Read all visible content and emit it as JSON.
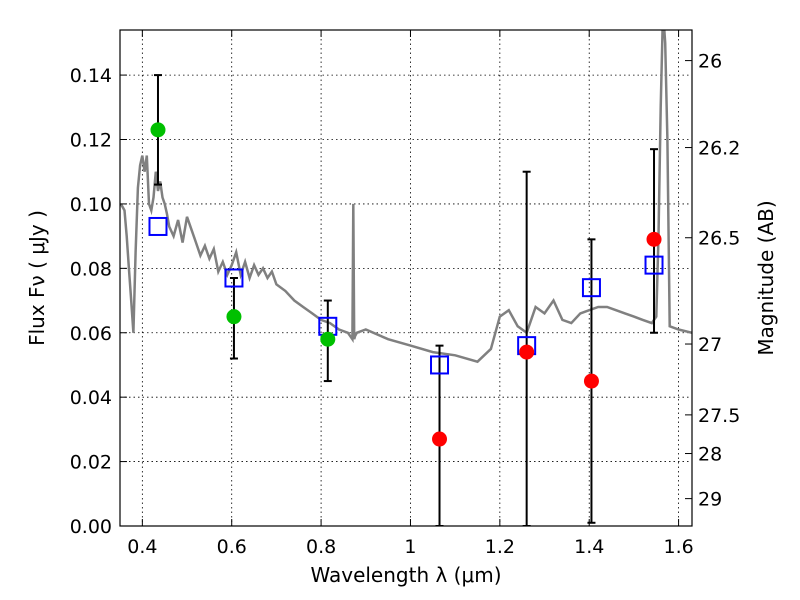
{
  "chart_data": {
    "type": "scatter",
    "xlabel": "Wavelength  λ (μm)",
    "ylabel": "Flux  Fν  ( μJy )",
    "y2label": "Magnitude (AB)",
    "xlim": [
      0.35,
      1.63
    ],
    "ylim": [
      0.0,
      0.154
    ],
    "grid": true,
    "x_ticks": [
      0.4,
      0.6,
      0.8,
      1.0,
      1.2,
      1.4,
      1.6
    ],
    "x_tick_labels": [
      "0.4",
      "0.6",
      "0.8",
      "1",
      "1.2",
      "1.4",
      "1.6"
    ],
    "y_ticks": [
      0.0,
      0.02,
      0.04,
      0.06,
      0.08,
      0.1,
      0.12,
      0.14
    ],
    "y_tick_labels": [
      "0.00",
      "0.02",
      "0.04",
      "0.06",
      "0.08",
      "0.10",
      "0.12",
      "0.14"
    ],
    "y2_ticks": [
      {
        "label": "26",
        "flux": 0.1445
      },
      {
        "label": "26.2",
        "flux": 0.1175
      },
      {
        "label": "26.5",
        "flux": 0.0895
      },
      {
        "label": "27",
        "flux": 0.0565
      },
      {
        "label": "27.5",
        "flux": 0.0345
      },
      {
        "label": "28",
        "flux": 0.0225
      },
      {
        "label": "29",
        "flux": 0.0085
      }
    ],
    "sed_model": {
      "color": "#808080",
      "x": [
        0.352,
        0.36,
        0.365,
        0.37,
        0.375,
        0.38,
        0.385,
        0.39,
        0.395,
        0.4,
        0.405,
        0.41,
        0.415,
        0.42,
        0.425,
        0.43,
        0.435,
        0.44,
        0.445,
        0.45,
        0.455,
        0.46,
        0.47,
        0.48,
        0.49,
        0.5,
        0.51,
        0.52,
        0.53,
        0.54,
        0.55,
        0.56,
        0.57,
        0.58,
        0.59,
        0.6,
        0.61,
        0.62,
        0.63,
        0.64,
        0.65,
        0.66,
        0.67,
        0.68,
        0.69,
        0.7,
        0.72,
        0.74,
        0.76,
        0.78,
        0.8,
        0.82,
        0.84,
        0.86,
        0.87,
        0.872,
        0.874,
        0.876,
        0.88,
        0.9,
        0.95,
        1.0,
        1.05,
        1.1,
        1.15,
        1.18,
        1.2,
        1.22,
        1.24,
        1.26,
        1.28,
        1.3,
        1.32,
        1.34,
        1.36,
        1.38,
        1.4,
        1.42,
        1.44,
        1.46,
        1.48,
        1.5,
        1.52,
        1.54,
        1.55,
        1.555,
        1.56,
        1.565,
        1.57,
        1.575,
        1.58,
        1.6,
        1.63
      ],
      "y": [
        0.1,
        0.098,
        0.09,
        0.08,
        0.07,
        0.06,
        0.085,
        0.105,
        0.112,
        0.115,
        0.11,
        0.115,
        0.1,
        0.098,
        0.102,
        0.11,
        0.104,
        0.107,
        0.102,
        0.1,
        0.097,
        0.093,
        0.09,
        0.095,
        0.088,
        0.096,
        0.092,
        0.088,
        0.084,
        0.087,
        0.083,
        0.086,
        0.079,
        0.082,
        0.078,
        0.081,
        0.085,
        0.078,
        0.082,
        0.077,
        0.081,
        0.078,
        0.08,
        0.077,
        0.079,
        0.075,
        0.073,
        0.07,
        0.068,
        0.066,
        0.064,
        0.063,
        0.061,
        0.06,
        0.058,
        0.1,
        0.058,
        0.059,
        0.06,
        0.061,
        0.058,
        0.056,
        0.054,
        0.053,
        0.051,
        0.055,
        0.065,
        0.067,
        0.062,
        0.06,
        0.068,
        0.066,
        0.07,
        0.064,
        0.063,
        0.066,
        0.067,
        0.068,
        0.068,
        0.067,
        0.066,
        0.065,
        0.064,
        0.063,
        0.065,
        0.09,
        0.13,
        0.16,
        0.15,
        0.12,
        0.062,
        0.061,
        0.06
      ]
    },
    "model_photometry": {
      "marker": "square",
      "color": "#0000ff",
      "x": [
        0.435,
        0.605,
        0.815,
        1.065,
        1.26,
        1.405,
        1.545
      ],
      "y": [
        0.093,
        0.077,
        0.062,
        0.05,
        0.056,
        0.074,
        0.081
      ]
    },
    "detections": {
      "marker": "circle",
      "color": "#00c000",
      "x": [
        0.435,
        0.605,
        0.815
      ],
      "y": [
        0.123,
        0.065,
        0.058
      ],
      "err_low": [
        0.106,
        0.052,
        0.045
      ],
      "err_high": [
        0.14,
        0.077,
        0.07
      ]
    },
    "upper_limits": {
      "marker": "circle",
      "color": "#ff0000",
      "x": [
        1.065,
        1.26,
        1.405,
        1.545
      ],
      "y": [
        0.027,
        0.054,
        0.045,
        0.089
      ],
      "err_low": [
        0.0,
        0.0,
        0.001,
        0.06
      ],
      "err_high": [
        0.056,
        0.11,
        0.089,
        0.117
      ]
    }
  }
}
